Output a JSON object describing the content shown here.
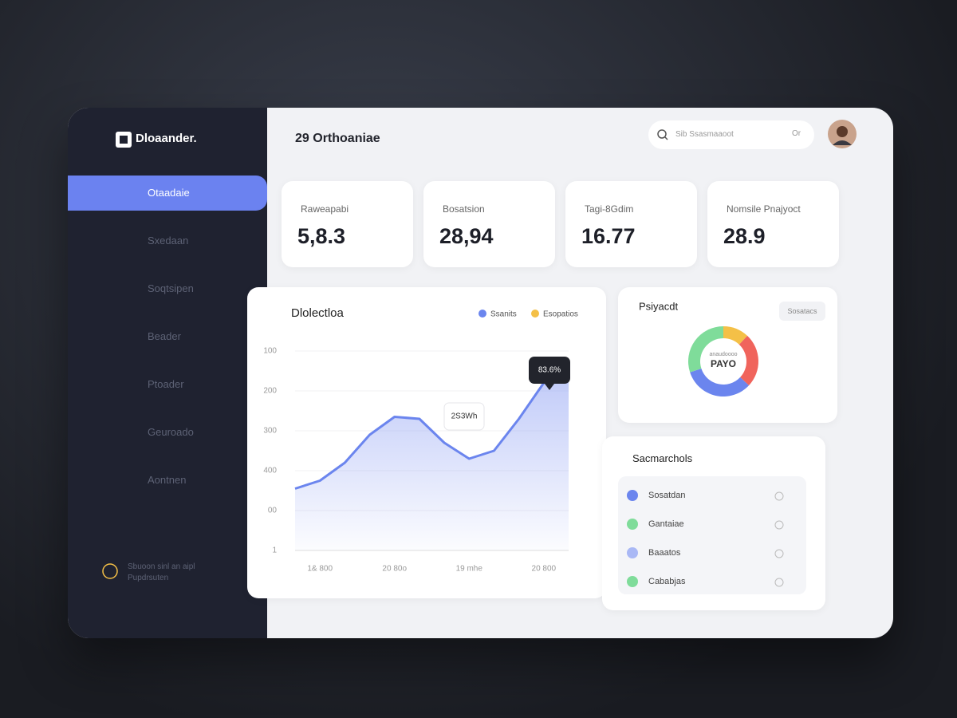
{
  "sidebar": {
    "logo": "Dloaander.",
    "items": [
      "Otaadaie",
      "Sxedaan",
      "Soqtsipen",
      "Beader",
      "Ptoader",
      "Geuroado",
      "Aontnen"
    ],
    "footer": [
      "Sbuoon sinl an aipl",
      "Pupdrsuten"
    ]
  },
  "header": {
    "title": "29 Orthoaniae",
    "search": "Sib Ssasmaaoot",
    "search_hint": "Or"
  },
  "stats": [
    {
      "label": "Raweapabi",
      "value": "5,8.3"
    },
    {
      "label": "Bosatsion",
      "value": "28,94"
    },
    {
      "label": "Tagi-8Gdim",
      "value": "16.77"
    },
    {
      "label": "Nomsile Pnajyoct",
      "value": "28.9"
    }
  ],
  "chart_data": [
    {
      "type": "line",
      "title": "Dlolectloa",
      "legend": [
        {
          "name": "Ssanits",
          "color": "#6b85ee"
        },
        {
          "name": "Esopatios",
          "color": "#f4c047"
        }
      ],
      "categories": [
        null,
        "1& 800",
        null,
        null,
        "20 80o",
        null,
        null,
        "19 mhe",
        null,
        null,
        "20 800",
        null
      ],
      "series": [
        {
          "name": "Ssanits",
          "color": "#6b85ee",
          "values": [
            1.55,
            1.75,
            2.2,
            2.9,
            3.35,
            3.3,
            2.7,
            2.3,
            2.5,
            3.3,
            4.2,
            4.4
          ]
        }
      ],
      "ylim": [
        0,
        5
      ],
      "yticks": [
        {
          "value": 0,
          "label": "1"
        },
        {
          "value": 1,
          "label": "00"
        },
        {
          "value": 2,
          "label": "400"
        },
        {
          "value": 3,
          "label": "300"
        },
        {
          "value": 4,
          "label": "200"
        },
        {
          "value": 5,
          "label": "100"
        }
      ],
      "grid": true,
      "annotations": [
        {
          "text": "2S3Wh"
        },
        {
          "text": "83.6%"
        }
      ]
    },
    {
      "type": "pie",
      "title": "Psiyacdt",
      "button": "Sosatacs",
      "center_caption": "anaudoooo",
      "center_label": "PAYO",
      "values": [
        12,
        25,
        33,
        30
      ],
      "colors": [
        "#f4c047",
        "#f0645c",
        "#6b85ee",
        "#7fdc9a"
      ]
    }
  ],
  "list": {
    "title": "Sacmarchols",
    "items": [
      {
        "label": "Sosatdan",
        "color": "#6b85ee"
      },
      {
        "label": "Gantaiae",
        "color": "#7fdc9a"
      },
      {
        "label": "Baaatos",
        "color": "#a9b8f5"
      },
      {
        "label": "Cababjas",
        "color": "#7fdc9a"
      }
    ]
  }
}
